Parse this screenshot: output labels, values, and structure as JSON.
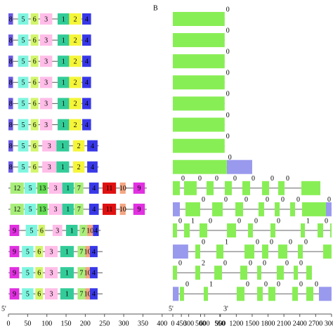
{
  "panel_label": "B",
  "left": {
    "end5": "5'",
    "end3": "3'",
    "ticks": [
      0,
      50,
      100,
      150,
      200,
      250,
      300,
      350,
      400,
      450,
      500,
      550
    ],
    "motif_colors": {
      "1": "#33cc99",
      "2": "#f5f53a",
      "3": "#ffbde8",
      "4": "#3838e8",
      "5": "#7ff5e0",
      "6": "#d2f56a",
      "7": "#a8ee7a",
      "8": "#6a5ae0",
      "9": "#e030e0",
      "10": "#f4a582",
      "11": "#e01010",
      "12": "#a8ee7a",
      "13": "#66dd55"
    },
    "rows": [
      {
        "length": 215,
        "motifs": [
          {
            "label": "8",
            "start": 0,
            "end": 12
          },
          {
            "label": "5",
            "start": 25,
            "end": 52
          },
          {
            "label": "6",
            "start": 58,
            "end": 78
          },
          {
            "label": "3",
            "start": 82,
            "end": 114
          },
          {
            "label": "1",
            "start": 128,
            "end": 158
          },
          {
            "label": "2",
            "start": 158,
            "end": 190
          },
          {
            "label": "4",
            "start": 192,
            "end": 215
          }
        ]
      },
      {
        "length": 215,
        "motifs": [
          {
            "label": "8",
            "start": 0,
            "end": 12
          },
          {
            "label": "5",
            "start": 25,
            "end": 52
          },
          {
            "label": "6",
            "start": 58,
            "end": 78
          },
          {
            "label": "3",
            "start": 82,
            "end": 114
          },
          {
            "label": "1",
            "start": 128,
            "end": 158
          },
          {
            "label": "2",
            "start": 158,
            "end": 190
          },
          {
            "label": "4",
            "start": 192,
            "end": 215
          }
        ]
      },
      {
        "length": 215,
        "motifs": [
          {
            "label": "8",
            "start": 0,
            "end": 12
          },
          {
            "label": "5",
            "start": 25,
            "end": 52
          },
          {
            "label": "6",
            "start": 58,
            "end": 78
          },
          {
            "label": "3",
            "start": 82,
            "end": 114
          },
          {
            "label": "1",
            "start": 128,
            "end": 158
          },
          {
            "label": "2",
            "start": 158,
            "end": 190
          },
          {
            "label": "4",
            "start": 192,
            "end": 215
          }
        ]
      },
      {
        "length": 215,
        "motifs": [
          {
            "label": "8",
            "start": 0,
            "end": 12
          },
          {
            "label": "5",
            "start": 25,
            "end": 52
          },
          {
            "label": "6",
            "start": 58,
            "end": 78
          },
          {
            "label": "3",
            "start": 82,
            "end": 114
          },
          {
            "label": "1",
            "start": 128,
            "end": 158
          },
          {
            "label": "2",
            "start": 158,
            "end": 190
          },
          {
            "label": "4",
            "start": 192,
            "end": 215
          }
        ]
      },
      {
        "length": 215,
        "motifs": [
          {
            "label": "8",
            "start": 0,
            "end": 12
          },
          {
            "label": "5",
            "start": 25,
            "end": 52
          },
          {
            "label": "6",
            "start": 58,
            "end": 78
          },
          {
            "label": "3",
            "start": 82,
            "end": 114
          },
          {
            "label": "1",
            "start": 128,
            "end": 158
          },
          {
            "label": "2",
            "start": 158,
            "end": 190
          },
          {
            "label": "4",
            "start": 192,
            "end": 215
          }
        ]
      },
      {
        "length": 215,
        "motifs": [
          {
            "label": "8",
            "start": 0,
            "end": 12
          },
          {
            "label": "5",
            "start": 25,
            "end": 52
          },
          {
            "label": "6",
            "start": 58,
            "end": 78
          },
          {
            "label": "3",
            "start": 82,
            "end": 114
          },
          {
            "label": "1",
            "start": 128,
            "end": 158
          },
          {
            "label": "2",
            "start": 158,
            "end": 190
          },
          {
            "label": "4",
            "start": 192,
            "end": 215
          }
        ]
      },
      {
        "length": 235,
        "motifs": [
          {
            "label": "8",
            "start": 0,
            "end": 12
          },
          {
            "label": "5",
            "start": 25,
            "end": 52
          },
          {
            "label": "6",
            "start": 58,
            "end": 78
          },
          {
            "label": "3",
            "start": 88,
            "end": 125
          },
          {
            "label": "1",
            "start": 125,
            "end": 158
          },
          {
            "label": "2",
            "start": 168,
            "end": 198
          },
          {
            "label": "4",
            "start": 205,
            "end": 232
          }
        ]
      },
      {
        "length": 235,
        "motifs": [
          {
            "label": "8",
            "start": 0,
            "end": 12
          },
          {
            "label": "5",
            "start": 25,
            "end": 52
          },
          {
            "label": "6",
            "start": 58,
            "end": 78
          },
          {
            "label": "3",
            "start": 88,
            "end": 125
          },
          {
            "label": "1",
            "start": 125,
            "end": 158
          },
          {
            "label": "2",
            "start": 168,
            "end": 198
          },
          {
            "label": "4",
            "start": 205,
            "end": 232
          }
        ]
      },
      {
        "length": 360,
        "motifs": [
          {
            "label": "12",
            "start": 5,
            "end": 40
          },
          {
            "label": "5",
            "start": 42,
            "end": 72
          },
          {
            "label": "13",
            "start": 75,
            "end": 102
          },
          {
            "label": "3",
            "start": 105,
            "end": 140
          },
          {
            "label": "1",
            "start": 140,
            "end": 170
          },
          {
            "label": "7",
            "start": 172,
            "end": 195
          },
          {
            "label": "4",
            "start": 210,
            "end": 235
          },
          {
            "label": "11",
            "start": 245,
            "end": 280
          },
          {
            "label": "10",
            "start": 290,
            "end": 305
          },
          {
            "label": "9",
            "start": 325,
            "end": 355
          }
        ]
      },
      {
        "length": 360,
        "motifs": [
          {
            "label": "12",
            "start": 5,
            "end": 40
          },
          {
            "label": "5",
            "start": 42,
            "end": 72
          },
          {
            "label": "13",
            "start": 75,
            "end": 102
          },
          {
            "label": "3",
            "start": 105,
            "end": 140
          },
          {
            "label": "1",
            "start": 140,
            "end": 170
          },
          {
            "label": "7",
            "start": 172,
            "end": 195
          },
          {
            "label": "4",
            "start": 210,
            "end": 235
          },
          {
            "label": "11",
            "start": 245,
            "end": 280
          },
          {
            "label": "10",
            "start": 290,
            "end": 305
          },
          {
            "label": "9",
            "start": 325,
            "end": 355
          }
        ]
      },
      {
        "length": 240,
        "motifs": [
          {
            "label": "9",
            "start": 3,
            "end": 28
          },
          {
            "label": "5",
            "start": 45,
            "end": 75
          },
          {
            "label": "6",
            "start": 78,
            "end": 95
          },
          {
            "label": "3",
            "start": 115,
            "end": 140
          },
          {
            "label": "1",
            "start": 150,
            "end": 180
          },
          {
            "label": "7",
            "start": 185,
            "end": 205
          },
          {
            "label": "10",
            "start": 205,
            "end": 220
          },
          {
            "label": "4",
            "start": 220,
            "end": 235
          }
        ]
      },
      {
        "length": 245,
        "motifs": [
          {
            "label": "9",
            "start": 3,
            "end": 28
          },
          {
            "label": "5",
            "start": 35,
            "end": 65
          },
          {
            "label": "6",
            "start": 70,
            "end": 90
          },
          {
            "label": "3",
            "start": 95,
            "end": 128
          },
          {
            "label": "1",
            "start": 135,
            "end": 170
          },
          {
            "label": "7",
            "start": 180,
            "end": 200
          },
          {
            "label": "10",
            "start": 200,
            "end": 212
          },
          {
            "label": "4",
            "start": 212,
            "end": 232
          }
        ]
      },
      {
        "length": 245,
        "motifs": [
          {
            "label": "9",
            "start": 3,
            "end": 28
          },
          {
            "label": "5",
            "start": 35,
            "end": 65
          },
          {
            "label": "6",
            "start": 70,
            "end": 90
          },
          {
            "label": "3",
            "start": 95,
            "end": 128
          },
          {
            "label": "1",
            "start": 135,
            "end": 170
          },
          {
            "label": "7",
            "start": 180,
            "end": 200
          },
          {
            "label": "10",
            "start": 200,
            "end": 212
          },
          {
            "label": "4",
            "start": 212,
            "end": 232
          }
        ]
      },
      {
        "length": 245,
        "motifs": [
          {
            "label": "9",
            "start": 3,
            "end": 28
          },
          {
            "label": "5",
            "start": 35,
            "end": 65
          },
          {
            "label": "6",
            "start": 70,
            "end": 90
          },
          {
            "label": "3",
            "start": 95,
            "end": 128
          },
          {
            "label": "1",
            "start": 135,
            "end": 170
          },
          {
            "label": "7",
            "start": 180,
            "end": 200
          },
          {
            "label": "10",
            "start": 200,
            "end": 212
          },
          {
            "label": "4",
            "start": 212,
            "end": 232
          }
        ]
      }
    ]
  },
  "right": {
    "end5": "5'",
    "exon_color": "#88ee55",
    "utr_color": "#9999ee",
    "ticks": [
      0,
      300,
      600,
      900,
      1200,
      1500,
      1800,
      2100,
      2400,
      2700,
      3000
    ],
    "rows": [
      {
        "exons": [
          [
            0,
            980
          ]
        ],
        "utrs": [],
        "phases": [
          "0"
        ]
      },
      {
        "exons": [
          [
            0,
            980
          ]
        ],
        "utrs": [],
        "phases": [
          "0"
        ]
      },
      {
        "exons": [
          [
            0,
            980
          ]
        ],
        "utrs": [],
        "phases": [
          "0"
        ]
      },
      {
        "exons": [
          [
            0,
            980
          ]
        ],
        "utrs": [],
        "phases": [
          "0"
        ]
      },
      {
        "exons": [
          [
            0,
            980
          ]
        ],
        "utrs": [],
        "phases": [
          "0"
        ]
      },
      {
        "exons": [
          [
            0,
            980
          ]
        ],
        "utrs": [],
        "phases": [
          "0"
        ]
      },
      {
        "exons": [
          [
            0,
            980
          ]
        ],
        "utrs": [],
        "phases": [
          "0"
        ]
      },
      {
        "exons": [
          [
            0,
            1020
          ]
        ],
        "utrs": [
          [
            1020,
            1500
          ]
        ],
        "phases": [
          "0"
        ]
      },
      {
        "exons": [
          [
            0,
            133
          ],
          [
            212,
            451
          ],
          [
            637,
            770
          ],
          [
            982,
            1115
          ],
          [
            1315,
            1461
          ],
          [
            1687,
            1820
          ],
          [
            1992,
            2112
          ],
          [
            2430,
            2789
          ]
        ],
        "utrs": [],
        "phases": [
          "0",
          "0",
          "0",
          "0",
          "0",
          "0",
          "0"
        ]
      },
      {
        "exons": [
          [
            239,
            518
          ],
          [
            744,
            943
          ],
          [
            1182,
            1328
          ],
          [
            1620,
            1726
          ],
          [
            1926,
            2019
          ],
          [
            2218,
            2311
          ],
          [
            2443,
            2895
          ]
        ],
        "utrs": [
          [
            0,
            133
          ],
          [
            2895,
            3000
          ]
        ],
        "phases": [
          "0",
          "0",
          "0",
          "0",
          "0",
          "0",
          "0"
        ]
      },
      {
        "exons": [
          [
            0,
            80
          ],
          [
            212,
            319
          ],
          [
            505,
            651
          ],
          [
            1023,
            1195
          ],
          [
            1421,
            1514
          ],
          [
            1846,
            1939
          ],
          [
            2417,
            2497
          ],
          [
            2736,
            2842
          ],
          [
            2975,
            3000
          ]
        ],
        "utrs": [],
        "phases": [
          "0",
          "1",
          "0",
          "0",
          "0",
          "0",
          "1",
          "0"
        ]
      },
      {
        "exons": [
          [
            425,
            518
          ],
          [
            823,
            956
          ],
          [
            1355,
            1541
          ],
          [
            1687,
            1806
          ],
          [
            1992,
            2165
          ],
          [
            2364,
            2457
          ],
          [
            2842,
            3000
          ]
        ],
        "utrs": [
          [
            0,
            290
          ]
        ],
        "phases": [
          "0",
          "1",
          "0",
          "0",
          "0",
          "0"
        ]
      },
      {
        "exons": [
          [
            0,
            80
          ],
          [
            425,
            518
          ],
          [
            784,
            930
          ],
          [
            1275,
            1408
          ],
          [
            1594,
            1673
          ],
          [
            1965,
            2098
          ],
          [
            2284,
            2364
          ],
          [
            2523,
            2629
          ]
        ],
        "utrs": [],
        "phases": [
          "0",
          "2",
          "0",
          "0",
          "0",
          "0",
          "0"
        ]
      },
      {
        "exons": [
          [
            133,
            212
          ],
          [
            584,
            664
          ],
          [
            1208,
            1355
          ],
          [
            1594,
            1700
          ],
          [
            1806,
            1939
          ],
          [
            2258,
            2364
          ],
          [
            2523,
            2656
          ]
        ],
        "utrs": [
          [
            0,
            110
          ],
          [
            2762,
            3000
          ]
        ],
        "phases": [
          "0",
          "1",
          "0",
          "0",
          "0",
          "0",
          "0"
        ]
      }
    ]
  }
}
